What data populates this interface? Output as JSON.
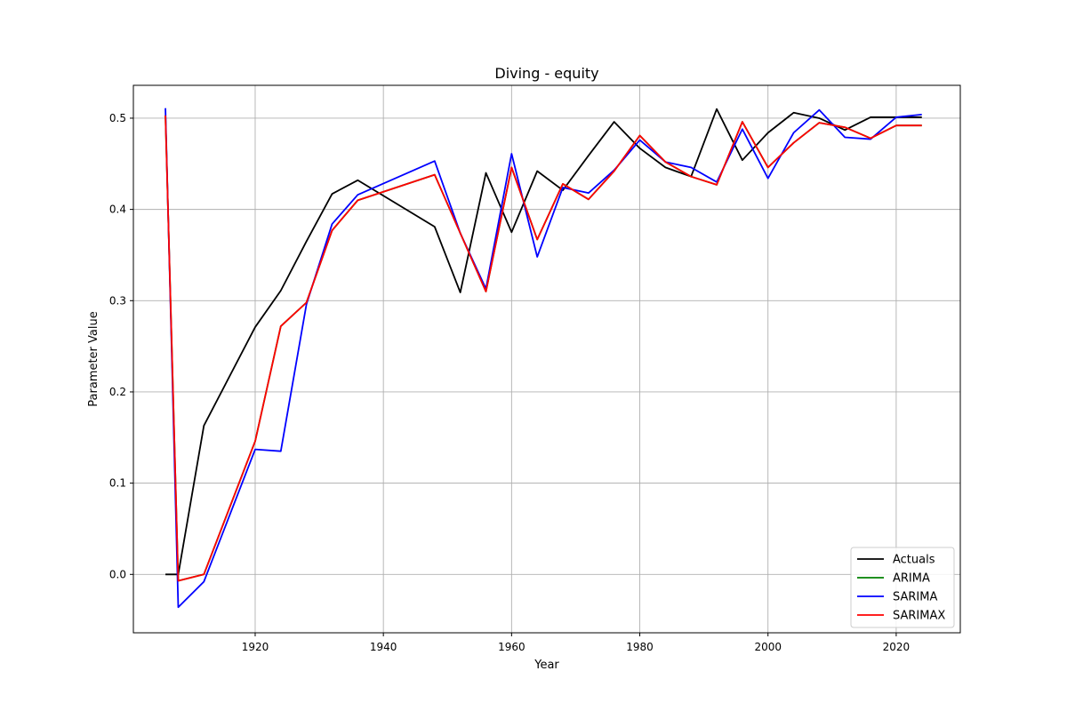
{
  "chart_data": {
    "type": "line",
    "title": "Diving - equity",
    "xlabel": "Year",
    "ylabel": "Parameter Value",
    "xlim": [
      1901,
      2030
    ],
    "ylim": [
      -0.064,
      0.536
    ],
    "xticks": [
      1920,
      1940,
      1960,
      1980,
      2000,
      2020
    ],
    "yticks": [
      0.0,
      0.1,
      0.2,
      0.3,
      0.4,
      0.5
    ],
    "ytick_labels": [
      "0.0",
      "0.1",
      "0.2",
      "0.3",
      "0.4",
      "0.5"
    ],
    "grid": true,
    "legend_position": "lower-right",
    "series": [
      {
        "name": "Actuals",
        "color": "#000000",
        "x": [
          1906,
          1908,
          1912,
          1920,
          1924,
          1928,
          1932,
          1936,
          1948,
          1952,
          1956,
          1960,
          1964,
          1968,
          1972,
          1976,
          1980,
          1984,
          1988,
          1992,
          1996,
          2000,
          2004,
          2008,
          2012,
          2016,
          2020,
          2024
        ],
        "y": [
          0.0,
          0.0,
          0.163,
          0.271,
          0.311,
          0.365,
          0.417,
          0.432,
          0.381,
          0.309,
          0.44,
          0.375,
          0.442,
          0.421,
          0.459,
          0.496,
          0.467,
          0.446,
          0.436,
          0.51,
          0.454,
          0.484,
          0.506,
          0.5,
          0.487,
          0.501,
          0.501,
          0.501
        ]
      },
      {
        "name": "ARIMA",
        "color": "#008000",
        "x": [
          1906,
          1908,
          1912,
          1920,
          1924,
          1928,
          1932,
          1936,
          1948,
          1952,
          1956,
          1960,
          1964,
          1968,
          1972,
          1976,
          1980,
          1984,
          1988,
          1992,
          1996,
          2000,
          2004,
          2008,
          2012,
          2016,
          2020,
          2024
        ],
        "y": [
          0.503,
          -0.007,
          0.0,
          0.146,
          0.272,
          0.298,
          0.377,
          0.41,
          0.438,
          0.374,
          0.31,
          0.446,
          0.367,
          0.428,
          0.411,
          0.442,
          0.481,
          0.452,
          0.436,
          0.427,
          0.496,
          0.446,
          0.473,
          0.495,
          0.49,
          0.478,
          0.492,
          0.492
        ]
      },
      {
        "name": "SARIMA",
        "color": "#0000ff",
        "x": [
          1906,
          1908,
          1912,
          1920,
          1924,
          1928,
          1932,
          1936,
          1948,
          1952,
          1956,
          1960,
          1964,
          1968,
          1972,
          1976,
          1980,
          1984,
          1988,
          1992,
          1996,
          2000,
          2004,
          2008,
          2012,
          2016,
          2020,
          2024
        ],
        "y": [
          0.511,
          -0.036,
          -0.008,
          0.137,
          0.135,
          0.296,
          0.384,
          0.416,
          0.453,
          0.374,
          0.313,
          0.461,
          0.348,
          0.424,
          0.418,
          0.443,
          0.476,
          0.452,
          0.446,
          0.43,
          0.488,
          0.434,
          0.484,
          0.509,
          0.479,
          0.477,
          0.501,
          0.504
        ]
      },
      {
        "name": "SARIMAX",
        "color": "#ff0000",
        "x": [
          1906,
          1908,
          1912,
          1920,
          1924,
          1928,
          1932,
          1936,
          1948,
          1952,
          1956,
          1960,
          1964,
          1968,
          1972,
          1976,
          1980,
          1984,
          1988,
          1992,
          1996,
          2000,
          2004,
          2008,
          2012,
          2016,
          2020,
          2024
        ],
        "y": [
          0.503,
          -0.007,
          0.0,
          0.146,
          0.272,
          0.298,
          0.377,
          0.41,
          0.438,
          0.374,
          0.31,
          0.446,
          0.367,
          0.428,
          0.411,
          0.442,
          0.481,
          0.452,
          0.436,
          0.427,
          0.496,
          0.446,
          0.473,
          0.495,
          0.49,
          0.478,
          0.492,
          0.492
        ]
      }
    ]
  }
}
